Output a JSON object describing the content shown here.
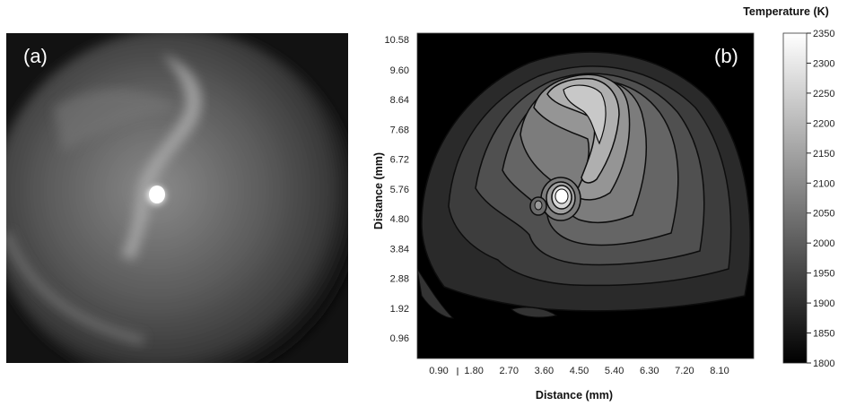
{
  "panel_a": {
    "label": "(a)"
  },
  "panel_b": {
    "label": "(b)",
    "x_axis": {
      "title": "Distance (mm)",
      "ticks": [
        "0.90",
        "1.80",
        "2.70",
        "3.60",
        "4.50",
        "5.40",
        "6.30",
        "7.20",
        "8.10"
      ],
      "values": [
        0.9,
        1.8,
        2.7,
        3.6,
        4.5,
        5.4,
        6.3,
        7.2,
        8.1
      ]
    },
    "y_axis": {
      "title": "Distance (mm)",
      "ticks": [
        "10.58",
        "9.60",
        "8.64",
        "7.68",
        "6.72",
        "5.76",
        "4.80",
        "3.84",
        "2.88",
        "1.92",
        "0.96"
      ],
      "values": [
        10.58,
        9.6,
        8.64,
        7.68,
        6.72,
        5.76,
        4.8,
        3.84,
        2.88,
        1.92,
        0.96
      ]
    }
  },
  "colorbar": {
    "title": "Temperature (K)",
    "ticks": [
      "2350",
      "2300",
      "2250",
      "2200",
      "2150",
      "2100",
      "2050",
      "2000",
      "1950",
      "1900",
      "1850",
      "1800"
    ],
    "values": [
      2350,
      2300,
      2250,
      2200,
      2150,
      2100,
      2050,
      2000,
      1950,
      1900,
      1850,
      1800
    ],
    "range": [
      1800,
      2350
    ],
    "gradient": [
      "#ffffff",
      "#000000"
    ]
  }
}
